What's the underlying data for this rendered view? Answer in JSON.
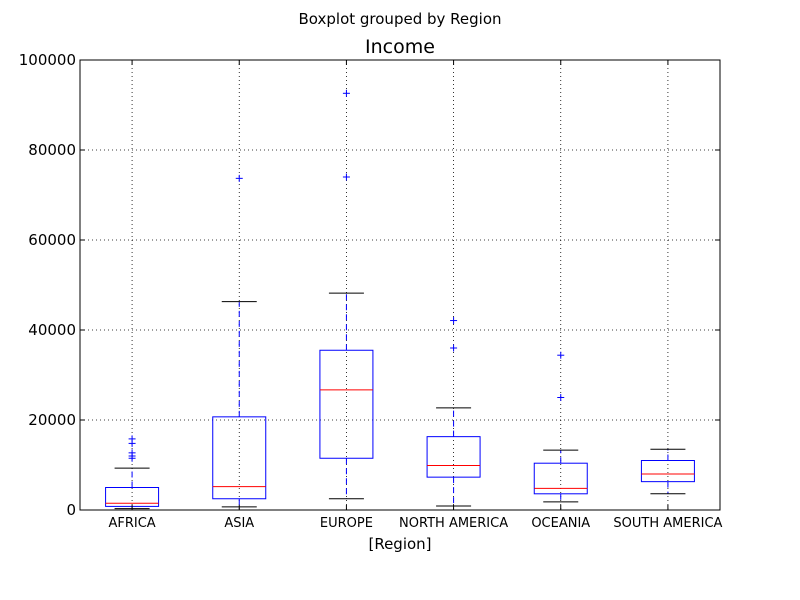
{
  "chart_data": {
    "type": "boxplot",
    "suptitle": "Boxplot grouped by Region",
    "title": "Income",
    "xlabel": "[Region]",
    "ylabel": "",
    "ylim": [
      0,
      100000
    ],
    "yticks": [
      0,
      20000,
      40000,
      60000,
      80000,
      100000
    ],
    "grid": true,
    "colors": {
      "box": "#0000ff",
      "median": "#ff0000",
      "whisker": "#0000ff",
      "cap": "#000000",
      "flier": "#0000ff"
    },
    "categories": [
      "AFRICA",
      "ASIA",
      "EUROPE",
      "NORTH AMERICA",
      "OCEANIA",
      "SOUTH AMERICA"
    ],
    "boxes": [
      {
        "category": "AFRICA",
        "whisker_low": 300,
        "q1": 800,
        "median": 1500,
        "q3": 5000,
        "whisker_high": 9300,
        "fliers": [
          11500,
          12000,
          12700,
          14800,
          15800
        ]
      },
      {
        "category": "ASIA",
        "whisker_low": 700,
        "q1": 2500,
        "median": 5200,
        "q3": 20700,
        "whisker_high": 46300,
        "fliers": [
          73700
        ]
      },
      {
        "category": "EUROPE",
        "whisker_low": 2500,
        "q1": 11500,
        "median": 26700,
        "q3": 35500,
        "whisker_high": 48200,
        "fliers": [
          74000,
          92600
        ]
      },
      {
        "category": "NORTH AMERICA",
        "whisker_low": 900,
        "q1": 7300,
        "median": 9900,
        "q3": 16300,
        "whisker_high": 22700,
        "fliers": [
          36000,
          42100
        ]
      },
      {
        "category": "OCEANIA",
        "whisker_low": 1800,
        "q1": 3600,
        "median": 4800,
        "q3": 10400,
        "whisker_high": 13300,
        "fliers": [
          25000,
          34400
        ]
      },
      {
        "category": "SOUTH AMERICA",
        "whisker_low": 3600,
        "q1": 6300,
        "median": 8000,
        "q3": 11000,
        "whisker_high": 13500,
        "fliers": []
      }
    ]
  }
}
